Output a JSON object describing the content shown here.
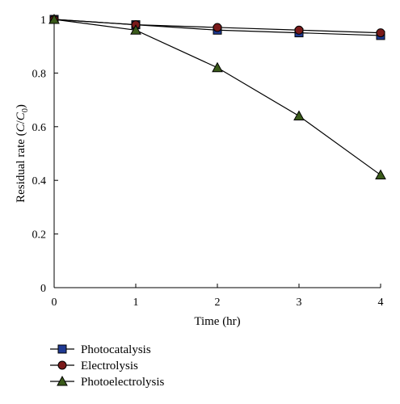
{
  "chart_data": {
    "type": "line",
    "x": [
      0,
      1,
      2,
      3,
      4
    ],
    "xlabel": "Time (hr)",
    "ylabel": {
      "prefix": "Residual rate (",
      "c": "C",
      "slash": "/",
      "c0": "C",
      "sub": "0",
      "suffix": ")"
    },
    "xlim": [
      0,
      4
    ],
    "ylim": [
      0,
      1
    ],
    "xticks": [
      "0",
      "1",
      "2",
      "3",
      "4"
    ],
    "yticks": [
      "0",
      "0.2",
      "0.4",
      "0.6",
      "0.8",
      "1"
    ],
    "grid": false,
    "legend_position": "bottom-left",
    "series": [
      {
        "name": "Photocatalysis",
        "marker": "square",
        "marker_color": "#1f3a93",
        "line_color": "#000000",
        "values": [
          1.0,
          0.98,
          0.96,
          0.95,
          0.94
        ]
      },
      {
        "name": "Electrolysis",
        "marker": "circle",
        "marker_color": "#7a1a1a",
        "line_color": "#000000",
        "values": [
          1.0,
          0.98,
          0.97,
          0.96,
          0.95
        ]
      },
      {
        "name": "Photoelectrolysis",
        "marker": "triangle",
        "marker_color": "#3a5a1a",
        "line_color": "#000000",
        "values": [
          1.0,
          0.96,
          0.82,
          0.64,
          0.42
        ]
      }
    ]
  }
}
